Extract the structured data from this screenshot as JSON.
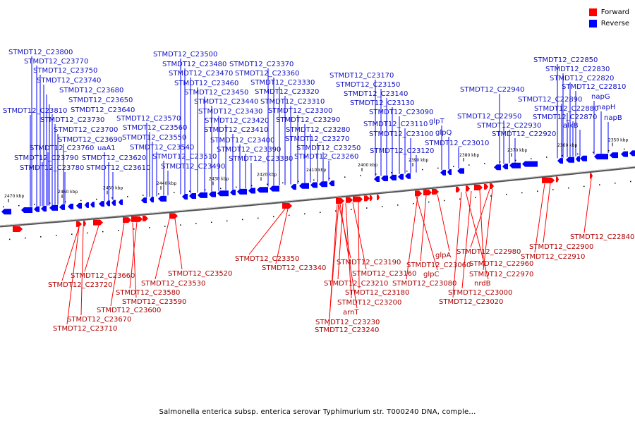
{
  "colors": {
    "forward": "#ff0000",
    "reverse": "#0000ff",
    "backbone": "#888888",
    "forward_text": "#b00000",
    "reverse_text": "#1010c0"
  },
  "legend": [
    {
      "label": "Forward",
      "color": "#ff0000"
    },
    {
      "label": "Reverse",
      "color": "#0000ff"
    }
  ],
  "title": "Salmonella enterica subsp. enterica serovar Typhimurium str. T000240 DNA, comple...",
  "scale_ticks": [
    "2470 kbp",
    "2460 kbp",
    "2450 kbp",
    "2440 kbp",
    "2430 kbp",
    "2420 kbp",
    "2410 kbp",
    "2400 kbp",
    "2390 kbp",
    "2380 kbp",
    "2370 kbp",
    "2360 kbp",
    "2350 kbp"
  ],
  "reverse_labels": [
    "STMDT12_C23800",
    "STMDT12_C23770",
    "STMDT12_C23750",
    "STMDT12_C23740",
    "STMDT12_C23680",
    "STMDT12_C23650",
    "STMDT12_C23640",
    "STMDT12_C23810",
    "STMDT12_C23730",
    "STMDT12_C23700",
    "STMDT12_C23690",
    "STMDT12_C23760",
    "STMDT12_C23790",
    "uaA1",
    "STMDT12_C23780",
    "STMDT12_C23620",
    "STMDT12_C23610",
    "STMDT12_C23570",
    "STMDT12_C23560",
    "STMDT12_C23550",
    "STMDT12_C23540",
    "STMDT12_C23510",
    "STMDT12_C23490",
    "STMDT12_C23500",
    "STMDT12_C23480",
    "STMDT12_C23470",
    "STMDT12_C23460",
    "STMDT12_C23450",
    "STMDT12_C23440",
    "STMDT12_C23430",
    "STMDT12_C23420",
    "STMDT12_C23410",
    "STMDT12_C23400",
    "STMDT12_C23390",
    "STMDT12_C23380",
    "STMDT12_C23370",
    "STMDT12_C23360",
    "STMDT12_C23330",
    "STMDT12_C23320",
    "STMDT12_C23310",
    "STMDT12_C23300",
    "STMDT12_C23290",
    "STMDT12_C23280",
    "STMDT12_C23270",
    "STMDT12_C23250",
    "STMDT12_C23260",
    "STMDT12_C23170",
    "STMDT12_C23150",
    "STMDT12_C23140",
    "STMDT12_C23130",
    "STMDT12_C23090",
    "STMDT12_C23110",
    "STMDT12_C23100",
    "STMDT12_C23120",
    "glpT",
    "glpQ",
    "STMDT12_C23010",
    "STMDT12_C22940",
    "STMDT12_C22950",
    "STMDT12_C22930",
    "STMDT12_C22920",
    "STMDT12_C22850",
    "STMDT12_C22830",
    "STMDT12_C22820",
    "STMDT12_C22810",
    "STMDT12_C22890",
    "STMDT12_C22880",
    "STMDT12_C22870",
    "napG",
    "napH",
    "alkB",
    "napB"
  ],
  "forward_labels": [
    "STMDT12_C23660",
    "STMDT12_C23720",
    "STMDT12_C23580",
    "STMDT12_C23590",
    "STMDT12_C23600",
    "STMDT12_C23670",
    "STMDT12_C23710",
    "STMDT12_C23530",
    "STMDT12_C23520",
    "STMDT12_C23350",
    "STMDT12_C23340",
    "STMDT12_C23190",
    "STMDT12_C23160",
    "STMDT12_C23210",
    "STMDT12_C23180",
    "STMDT12_C23200",
    "arnT",
    "STMDT12_C23230",
    "STMDT12_C23240",
    "glpA",
    "STMDT12_C23060",
    "glpC",
    "STMDT12_C23080",
    "nrdB",
    "STMDT12_C23000",
    "STMDT12_C23020",
    "STMDT12_C22980",
    "STMDT12_C22960",
    "STMDT12_C22970",
    "STMDT12_C22900",
    "STMDT12_C22910",
    "STMDT12_C22840"
  ]
}
